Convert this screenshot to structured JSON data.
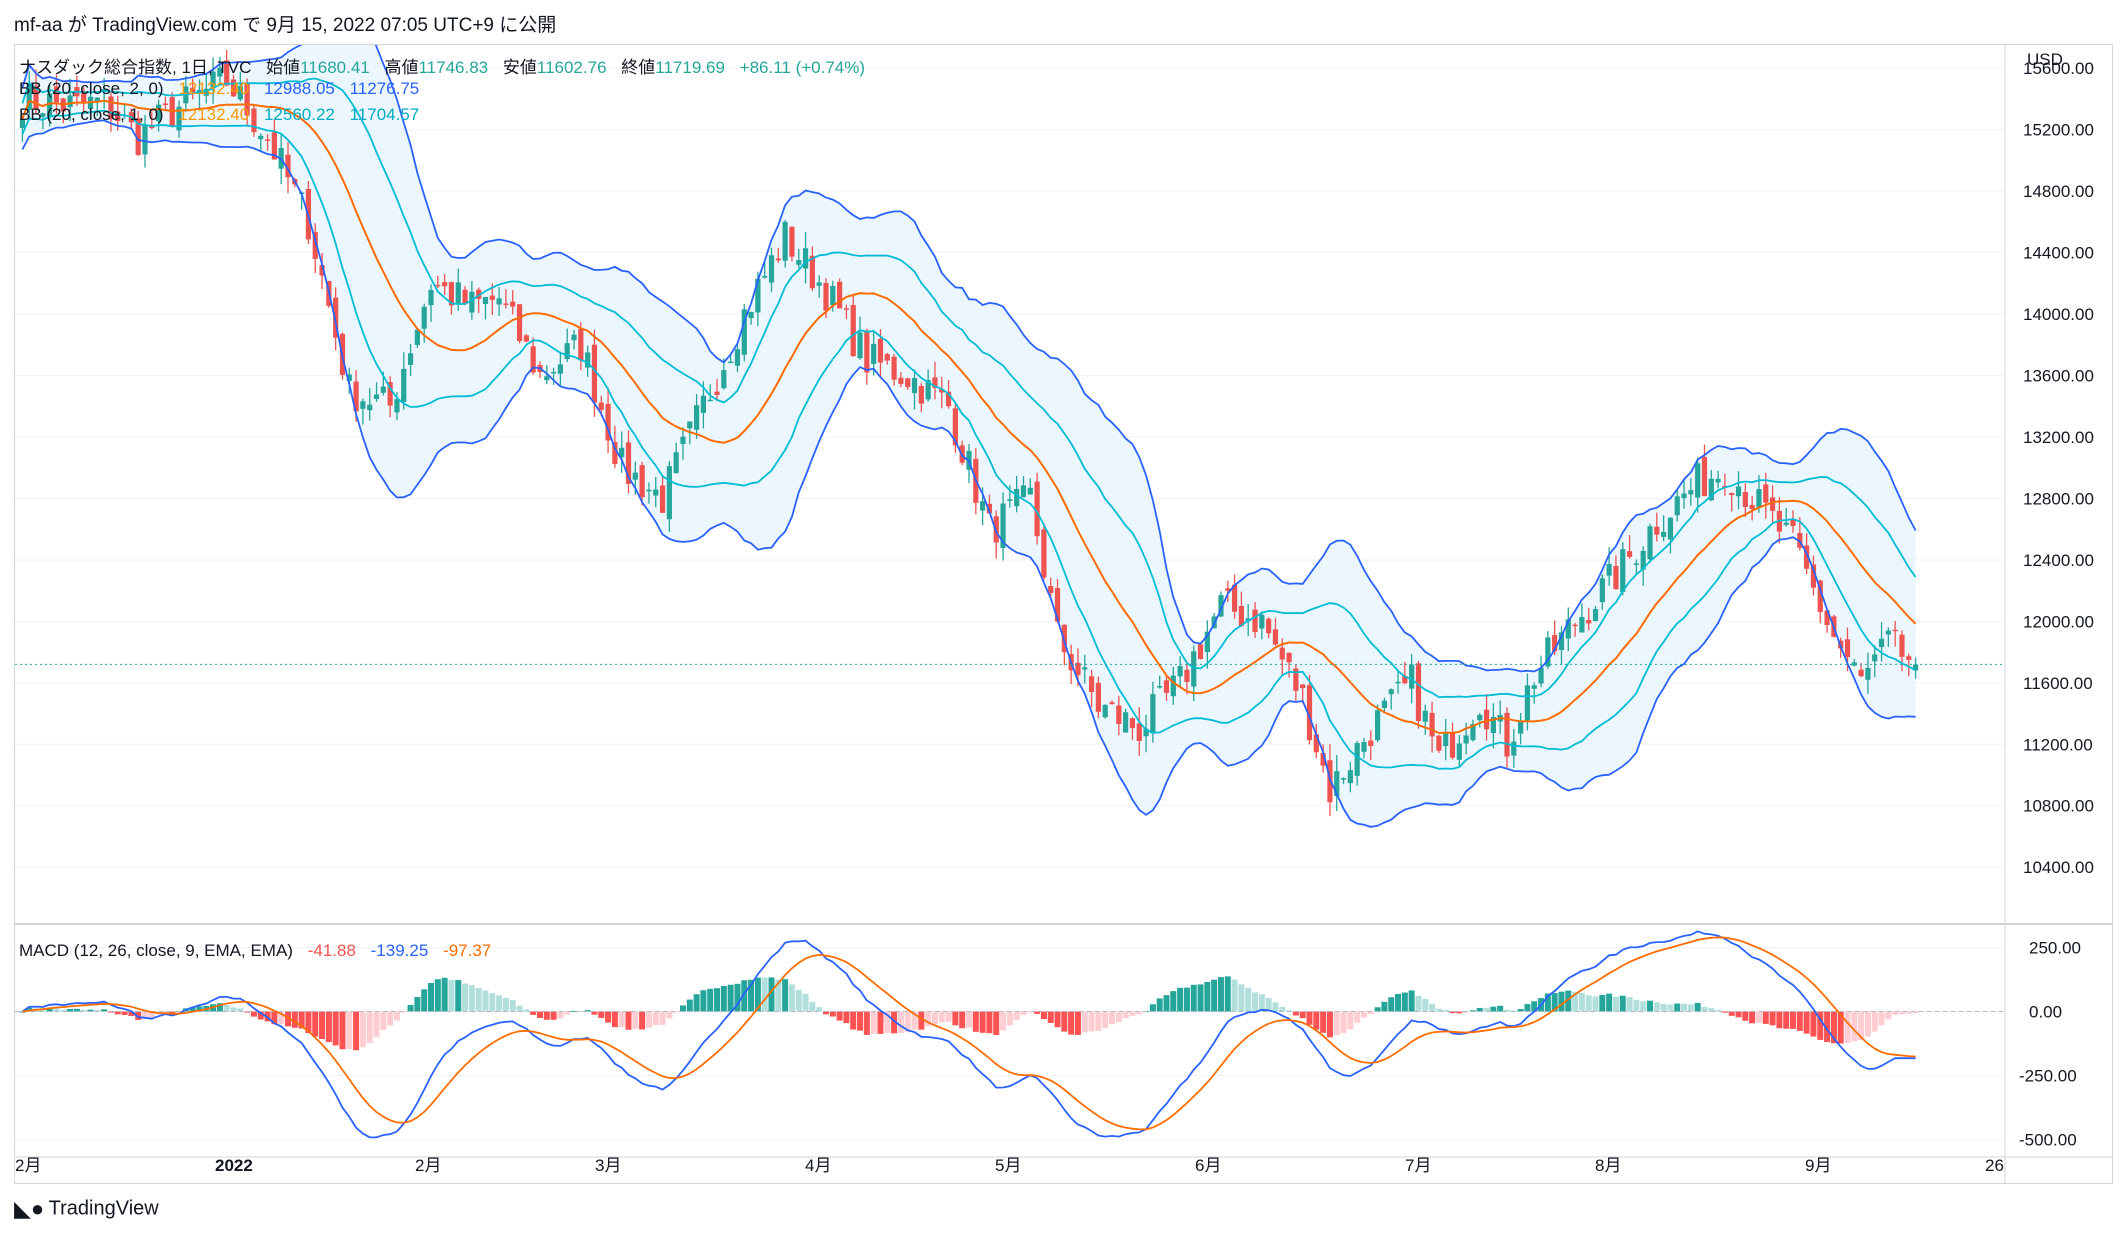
{
  "header": {
    "publish_line": "mf-aa が TradingView.com で 9月 15, 2022 07:05 UTC+9 に公開"
  },
  "footer": {
    "brand": "TradingView"
  },
  "legend": {
    "symbol": "ナスダック総合指数, 1日, TVC",
    "open_label": "始値",
    "open": "11680.41",
    "high_label": "高値",
    "high": "11746.83",
    "low_label": "安値",
    "low": "11602.76",
    "close_label": "終値",
    "close": "11719.69",
    "change": "+86.11 (+0.74%)",
    "bb2_label": "BB (20, close, 2, 0)",
    "bb2_mid": "12132.40",
    "bb2_up": "12988.05",
    "bb2_low": "11276.75",
    "bb1_label": "BB (20, close, 1, 0)",
    "bb1_mid": "12132.40",
    "bb1_up": "12560.22",
    "bb1_low": "11704.57",
    "macd_label": "MACD (12, 26, close, 9, EMA, EMA)",
    "macd_hist": "-41.88",
    "macd_line": "-139.25",
    "macd_signal": "-97.37"
  },
  "colors": {
    "up": "#26a69a",
    "down": "#ef5350",
    "bb_outer": "#2962ff",
    "bb_inner": "#00bcd4",
    "bb_mid": "#ff6d00",
    "band_fill": "#e3f2fd",
    "hist_up_strong": "#26a69a",
    "hist_up_weak": "#b2dfdb",
    "hist_down_strong": "#ff5252",
    "hist_down_weak": "#ffcdd2",
    "macd": "#2962ff",
    "signal": "#ff6d00",
    "grid": "#f0f3fa"
  },
  "chart_data": [
    {
      "type": "candlestick",
      "title": "ナスダック総合指数, 1日, TVC",
      "currency": "USD",
      "y_ticks": [
        10400,
        10800,
        11200,
        11600,
        12000,
        12400,
        12800,
        13200,
        13600,
        14000,
        14400,
        14800,
        15200,
        15600
      ],
      "ylim": [
        10050,
        15750
      ],
      "x_labels": [
        "2月",
        "2022",
        "2月",
        "3月",
        "4月",
        "5月",
        "6月",
        "7月",
        "8月",
        "9月",
        "26"
      ],
      "last_close": 11719.69,
      "close_anchors": [
        [
          0,
          15400
        ],
        [
          8,
          15350
        ],
        [
          12,
          15380
        ],
        [
          17,
          15150
        ],
        [
          22,
          15320
        ],
        [
          30,
          15520
        ],
        [
          36,
          15150
        ],
        [
          42,
          14600
        ],
        [
          48,
          13500
        ],
        [
          54,
          13400
        ],
        [
          60,
          14200
        ],
        [
          66,
          14050
        ],
        [
          70,
          14100
        ],
        [
          76,
          13600
        ],
        [
          82,
          13800
        ],
        [
          88,
          13000
        ],
        [
          94,
          12800
        ],
        [
          100,
          13400
        ],
        [
          106,
          14000
        ],
        [
          112,
          14500
        ],
        [
          118,
          14150
        ],
        [
          124,
          13700
        ],
        [
          130,
          13600
        ],
        [
          136,
          13400
        ],
        [
          142,
          12600
        ],
        [
          148,
          12800
        ],
        [
          152,
          11900
        ],
        [
          158,
          11450
        ],
        [
          164,
          11300
        ],
        [
          170,
          11600
        ],
        [
          176,
          12100
        ],
        [
          182,
          12000
        ],
        [
          188,
          11500
        ],
        [
          192,
          10900
        ],
        [
          198,
          11300
        ],
        [
          204,
          11600
        ],
        [
          208,
          11100
        ],
        [
          214,
          11500
        ],
        [
          218,
          11200
        ],
        [
          222,
          11650
        ],
        [
          228,
          12000
        ],
        [
          234,
          12300
        ],
        [
          240,
          12650
        ],
        [
          246,
          12900
        ],
        [
          250,
          13000
        ],
        [
          256,
          12700
        ],
        [
          260,
          12500
        ],
        [
          266,
          11900
        ],
        [
          270,
          11600
        ],
        [
          274,
          11850
        ],
        [
          278,
          11719.69
        ]
      ],
      "bollinger_1sd": {
        "mid": 12132.4,
        "upper": 12560.22,
        "lower": 11704.57
      },
      "bollinger_2sd": {
        "mid": 12132.4,
        "upper": 12988.05,
        "lower": 11276.75
      }
    },
    {
      "type": "histogram+line",
      "title": "MACD (12, 26, close, 9, EMA, EMA)",
      "y_ticks": [
        250,
        0,
        -250,
        -500
      ],
      "ylim": [
        -560,
        330
      ],
      "last_values": {
        "histogram": -41.88,
        "macd": -139.25,
        "signal": -97.37
      }
    }
  ]
}
